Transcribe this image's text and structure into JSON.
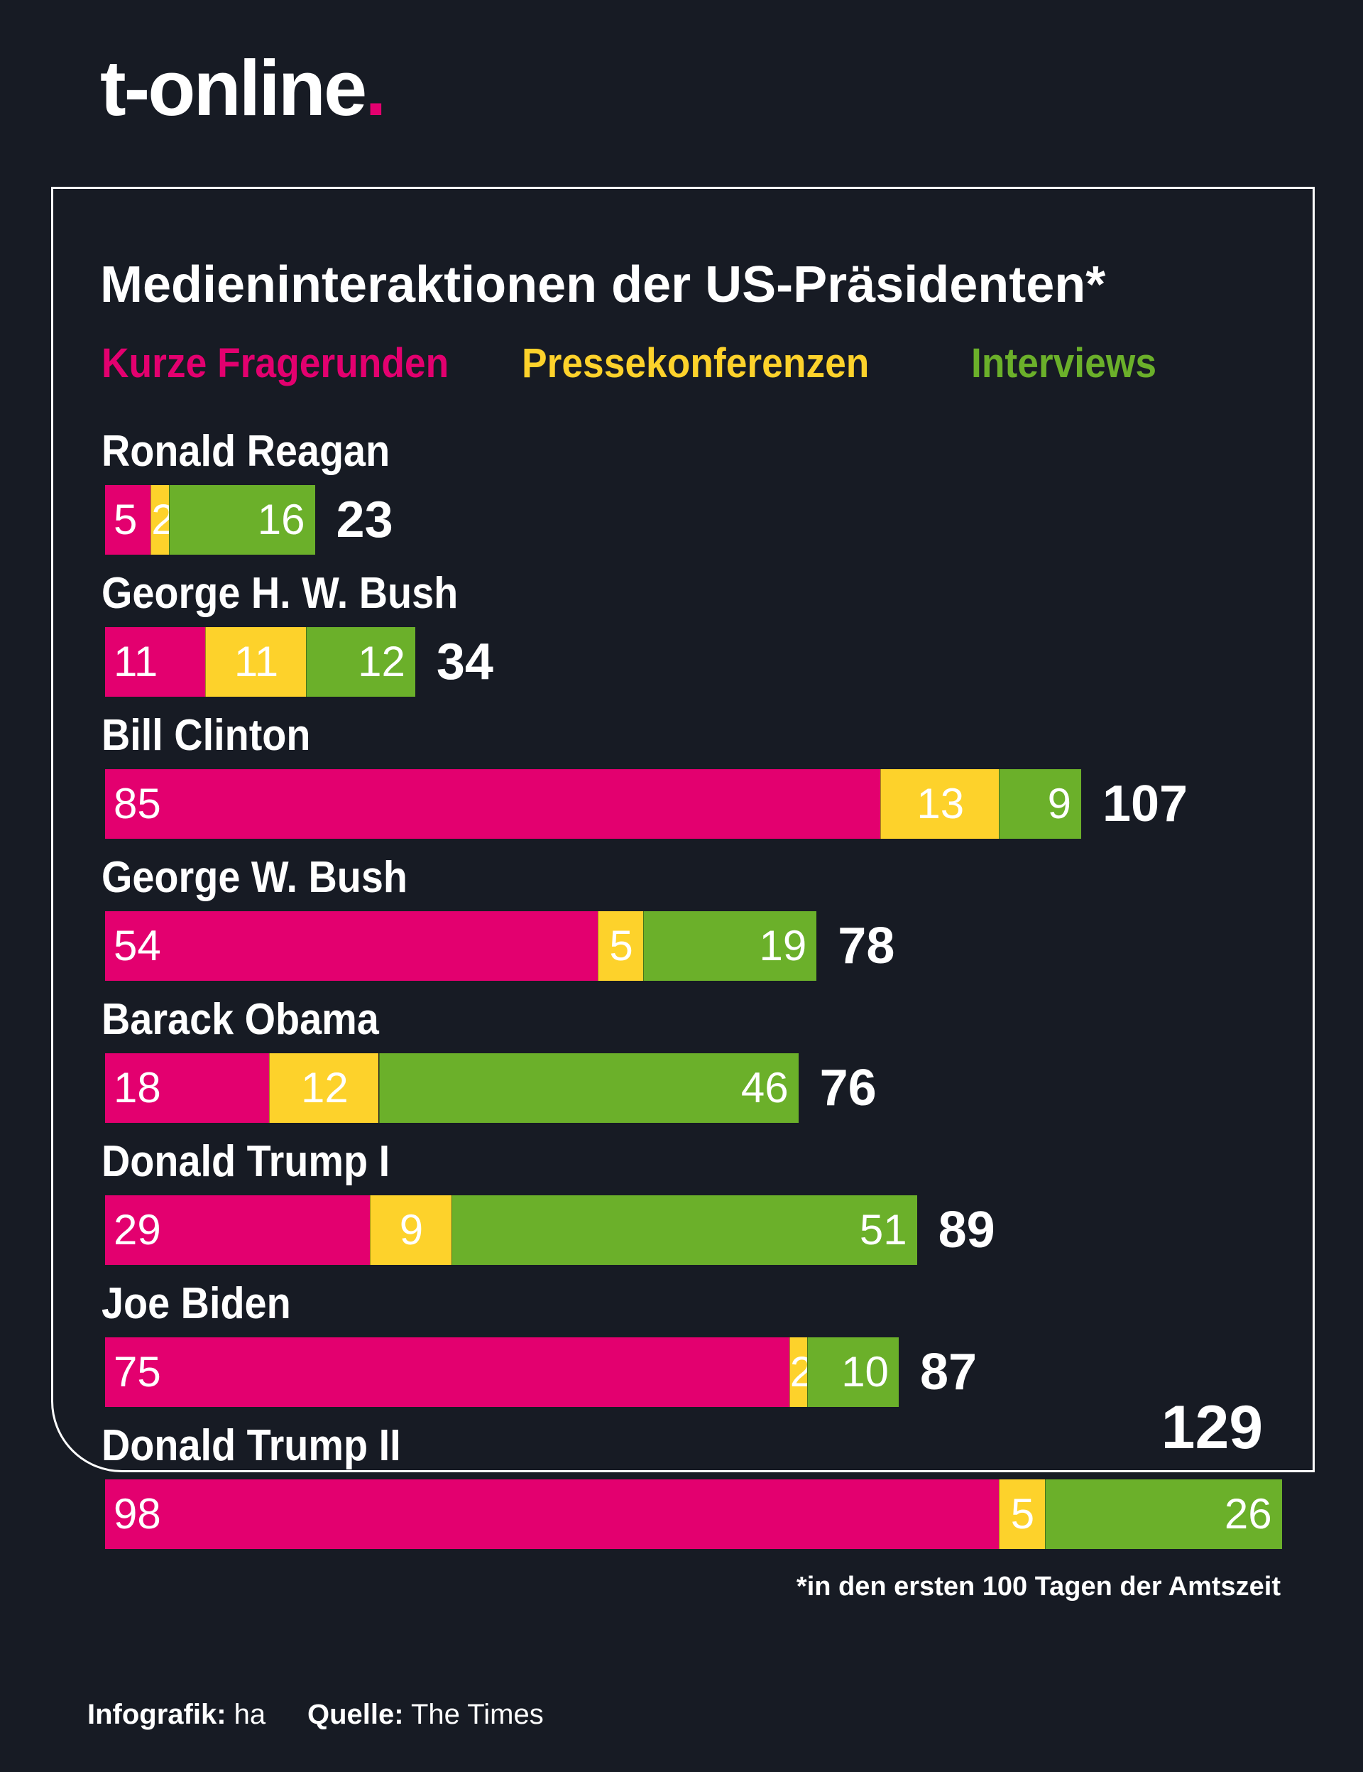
{
  "brand": {
    "logo_text": "t-online",
    "logo_dot": ".",
    "accent": "#e3006f"
  },
  "footer": {
    "credit_label": "Infografik:",
    "credit_value": "ha",
    "source_label": "Quelle:",
    "source_value": "The Times"
  },
  "chart_data": {
    "type": "bar",
    "orientation": "horizontal",
    "stacked": true,
    "title": "Medieninteraktionen der US-Präsidenten*",
    "footnote": "*in den ersten 100 Tagen der Amtszeit",
    "legend_position": "top",
    "categories": [
      "Ronald Reagan",
      "George H. W. Bush",
      "Bill Clinton",
      "George W. Bush",
      "Barack Obama",
      "Donald Trump I",
      "Joe Biden",
      "Donald Trump II"
    ],
    "series": [
      {
        "name": "Kurze Fragerunden",
        "color": "#e3006f",
        "values": [
          5,
          11,
          85,
          54,
          18,
          29,
          75,
          98
        ]
      },
      {
        "name": "Pressekonferenzen",
        "color": "#fdd22b",
        "values": [
          2,
          11,
          13,
          5,
          12,
          9,
          2,
          5
        ]
      },
      {
        "name": "Interviews",
        "color": "#6bb02a",
        "values": [
          16,
          12,
          9,
          19,
          46,
          51,
          10,
          26
        ]
      }
    ],
    "totals": [
      23,
      34,
      107,
      78,
      76,
      89,
      87,
      129
    ],
    "grid": false
  }
}
